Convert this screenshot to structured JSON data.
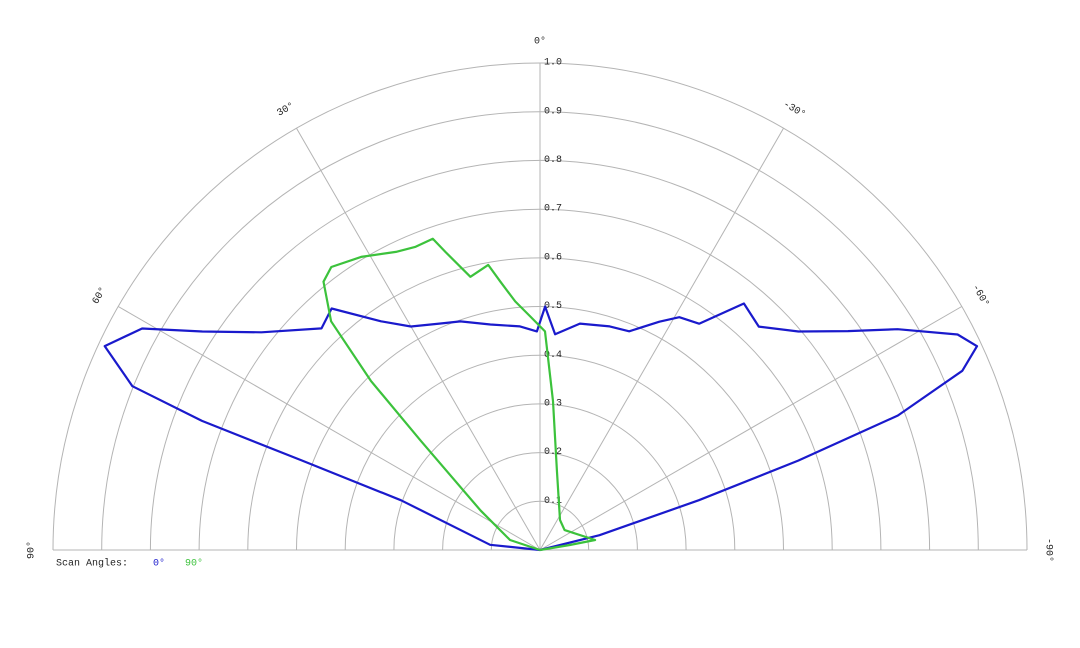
{
  "chart_data": {
    "type": "polar",
    "rlim": [
      0,
      1
    ],
    "rticks": [
      0.1,
      0.2,
      0.3,
      0.4,
      0.5,
      0.6,
      0.7,
      0.8,
      0.9,
      {
        "value": 1,
        "label": "1.0"
      }
    ],
    "thetalim": [
      -90,
      90
    ],
    "thetaticks": [
      {
        "value": 90,
        "label": "90°"
      },
      {
        "value": 60,
        "label": "60°"
      },
      {
        "value": 30,
        "label": "30°"
      },
      {
        "value": 0,
        "label": "0°"
      },
      {
        "value": -30,
        "label": "-30°"
      },
      {
        "value": -60,
        "label": "-60°"
      },
      {
        "value": -90,
        "label": "-90°"
      }
    ],
    "legend_title": "Scan Angles:",
    "series": [
      {
        "name": "0°",
        "color": "#1a1acc",
        "theta": [
          90,
          84,
          70.3,
          69.4,
          69.1,
          68.1,
          64.9,
          60.9,
          57.1,
          52,
          44.6,
          40.8,
          34.8,
          30,
          23.7,
          19.2,
          12.4,
          5.1,
          0.8,
          -1.2,
          -4,
          -10,
          -17.3,
          -22.2,
          -27.6,
          -30.9,
          -35.1,
          -39.6,
          -44.4,
          -49.8,
          -54.6,
          -58.3,
          -62.7,
          -65,
          -67,
          -69.4,
          -70.9,
          -72.6,
          -76,
          -90
        ],
        "r": [
          0,
          0.103,
          0.303,
          0.523,
          0.743,
          0.902,
          0.987,
          0.935,
          0.826,
          0.726,
          0.639,
          0.655,
          0.572,
          0.53,
          0.508,
          0.497,
          0.474,
          0.461,
          0.449,
          0.5,
          0.444,
          0.472,
          0.481,
          0.485,
          0.529,
          0.557,
          0.568,
          0.657,
          0.642,
          0.695,
          0.776,
          0.863,
          0.965,
          0.99,
          0.942,
          0.785,
          0.561,
          0.342,
          0.126,
          0
        ]
      },
      {
        "name": "90°",
        "color": "#3cc23c",
        "theta": [
          90,
          71.6,
          56.3,
          47.5,
          45,
          42.4,
          38.9,
          36.4,
          31.4,
          25.8,
          22.3,
          19,
          17.6,
          14.3,
          10.3,
          8.4,
          5.7,
          2.4,
          -1.3,
          -5,
          -12,
          -33.7,
          -51,
          -79.7,
          -80.5,
          -90
        ],
        "r": [
          0,
          0.065,
          0.147,
          0.332,
          0.491,
          0.636,
          0.708,
          0.722,
          0.705,
          0.68,
          0.673,
          0.676,
          0.642,
          0.579,
          0.595,
          0.557,
          0.513,
          0.48,
          0.449,
          0.307,
          0.167,
          0.074,
          0.065,
          0.115,
          0.062,
          0
        ]
      }
    ]
  }
}
